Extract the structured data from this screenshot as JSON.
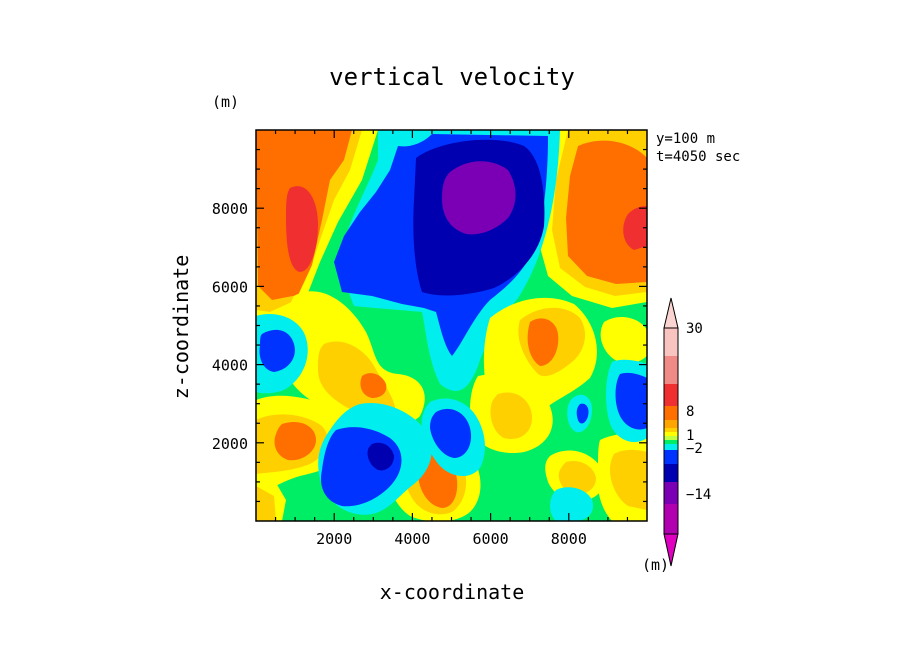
{
  "chart_data": {
    "type": "heatmap",
    "title": "vertical velocity",
    "xlabel": "x-coordinate",
    "ylabel": "z-coordinate",
    "x_unit": "(m)",
    "y_unit": "(m)",
    "annotations": [
      "y=100 m",
      "t=4050 sec"
    ],
    "xlim": [
      0,
      10000
    ],
    "ylim": [
      0,
      10000
    ],
    "x_ticks": [
      2000,
      4000,
      6000,
      8000
    ],
    "y_ticks": [
      2000,
      4000,
      6000,
      8000
    ],
    "colorbar": {
      "unit": "(m)",
      "tick_labels": [
        "30",
        "8",
        "1",
        "−2",
        "−14"
      ],
      "bands_top_to_bottom": [
        "#f9c4c0",
        "#ef8a86",
        "#f03030",
        "#ff6f00",
        "#ffa500",
        "#ffd000",
        "#ffff00",
        "#c0ff40",
        "#00ee66",
        "#00eeee",
        "#0033ff",
        "#0000b0",
        "#7b00b5",
        "#b000b0"
      ],
      "top_arrow_color": "#fad4d0",
      "bottom_arrow_color": "#e000c0"
    },
    "field_colors": {
      "green": "#00ee66",
      "yellow": "#ffff00",
      "gold": "#ffd000",
      "orange": "#ffa500",
      "dark_orange": "#ff6f00",
      "red": "#f03030",
      "cyan": "#00eeee",
      "blue": "#0033ff",
      "navy": "#0000b0",
      "purple": "#7b00b5"
    }
  }
}
